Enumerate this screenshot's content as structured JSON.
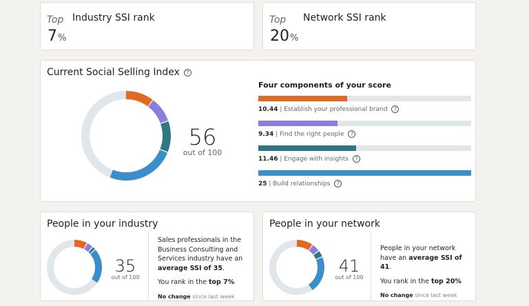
{
  "industry_rank": {
    "prefix": "Top",
    "title": "Industry SSI rank",
    "value": "7",
    "unit": "%"
  },
  "network_rank": {
    "prefix": "Top",
    "title": "Network SSI rank",
    "value": "20",
    "unit": "%"
  },
  "ssi": {
    "title": "Current Social Selling Index",
    "score": "56",
    "out_of": "out of 100",
    "components_title": "Four components of your score",
    "components": [
      {
        "value": "10.44",
        "label": "Establish your professional brand",
        "num": 10.44,
        "max": 25,
        "color": "#e06a24"
      },
      {
        "value": "9.34",
        "label": "Find the right people",
        "num": 9.34,
        "max": 25,
        "color": "#8b7ee0"
      },
      {
        "value": "11.46",
        "label": "Engage with insights",
        "num": 11.46,
        "max": 25,
        "color": "#2e7783"
      },
      {
        "value": "25",
        "label": "Build relationships",
        "num": 25,
        "max": 25,
        "color": "#3b8fc8"
      }
    ]
  },
  "industry": {
    "title": "People in your industry",
    "score": "35",
    "out_of": "out of 100",
    "desc1": "Sales professionals in the Business Consulting and Services industry have an ",
    "desc1_bold": "average SSI of 35",
    "desc1_end": ".",
    "rank_text": "You rank in the ",
    "rank_bold": "top 7%",
    "change_bold": "No change",
    "change_text": " since last week",
    "segments": [
      8,
      4,
      2,
      21
    ]
  },
  "network": {
    "title": "People in your network",
    "score": "41",
    "out_of": "out of 100",
    "desc1": "People in your network have an ",
    "desc1_bold": "average SSI of 41",
    "desc1_end": ".",
    "rank_text": "You rank in the ",
    "rank_bold": "top 20%",
    "change_bold": "No change",
    "change_text": " since last week",
    "segments": [
      10,
      5,
      4,
      22
    ]
  },
  "colors": {
    "track": "#e1e6eb",
    "brand": "#e06a24",
    "people": "#8b7ee0",
    "insights": "#2e7783",
    "relationships": "#3b8fc8"
  }
}
